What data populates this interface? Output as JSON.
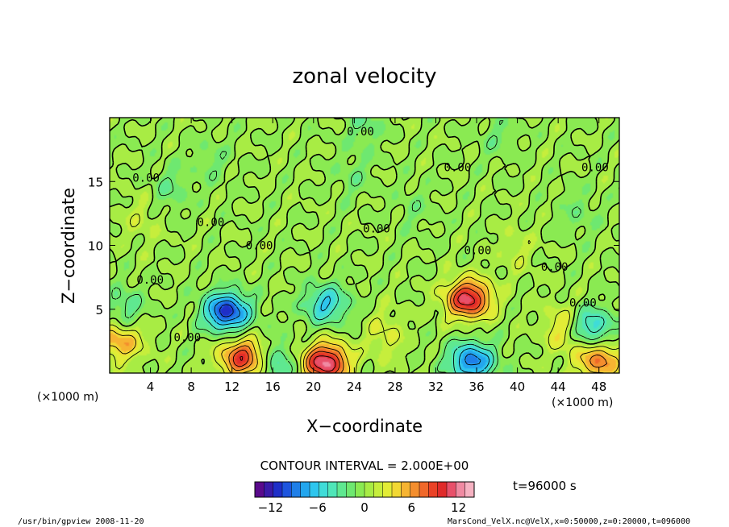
{
  "chart_data": {
    "type": "heatmap",
    "title": "zonal velocity",
    "xlabel": "X−coordinate",
    "ylabel": "Z−coordinate",
    "x_unit_left": "(×1000 m)",
    "x_unit_right": "(×1000 m)",
    "xlim": [
      0,
      50
    ],
    "ylim": [
      0,
      20
    ],
    "x_ticks": [
      4,
      8,
      12,
      16,
      20,
      24,
      28,
      32,
      36,
      40,
      44,
      48
    ],
    "y_ticks": [
      5,
      10,
      15
    ],
    "contour_interval_text": "CONTOUR INTERVAL = 2.000E+00",
    "time_text": "t=96000 s",
    "colorbar": {
      "range": [
        -14,
        14
      ],
      "ticks": [
        -12,
        -6,
        0,
        6,
        12
      ],
      "tick_labels": [
        "−12",
        "−6",
        "0",
        "6",
        "12"
      ],
      "colors": [
        "#5a0a8c",
        "#3a1aa8",
        "#1f2fc8",
        "#1e55de",
        "#1f7fe8",
        "#23a6ee",
        "#2ec6ee",
        "#3fdcd8",
        "#4fe6b8",
        "#5fe890",
        "#6ee870",
        "#8aea52",
        "#a8ec44",
        "#c6ee3c",
        "#e2ec36",
        "#f2d834",
        "#f6b432",
        "#f48e2e",
        "#f0682a",
        "#ea4226",
        "#e02a2a",
        "#e8506a",
        "#f08aa2",
        "#f6b2c2"
      ]
    },
    "contour_labels": [
      "0.00",
      "0.00",
      "0.00",
      "0.00",
      "0.00",
      "0.00",
      "0.00",
      "0.00",
      "0.00",
      "0.00",
      "0.00",
      "0.00"
    ],
    "features": [
      {
        "x": 11.5,
        "z": 4.8,
        "value": -11
      },
      {
        "x": 21.2,
        "z": 5.4,
        "value": -6
      },
      {
        "x": 21.2,
        "z": 0.8,
        "value": 12
      },
      {
        "x": 35.2,
        "z": 5.8,
        "value": 11
      },
      {
        "x": 35.5,
        "z": 0.9,
        "value": -9
      },
      {
        "x": 47.2,
        "z": 3.6,
        "value": -6
      },
      {
        "x": 13.0,
        "z": 1.2,
        "value": 9
      },
      {
        "x": 1.0,
        "z": 2.5,
        "value": 6
      },
      {
        "x": 48.0,
        "z": 1.0,
        "value": 7
      },
      {
        "x": 16.5,
        "z": 0.7,
        "value": -4
      },
      {
        "x": 1.5,
        "z": 5.0,
        "value": -3
      },
      {
        "x": 44.5,
        "z": 3.5,
        "value": 4
      },
      {
        "x": 6.0,
        "z": 14.5,
        "value": -2
      },
      {
        "x": 10.0,
        "z": 16.5,
        "value": -1.5
      },
      {
        "x": 24.0,
        "z": 15.5,
        "value": -1.5
      },
      {
        "x": 30.0,
        "z": 13.0,
        "value": -1.2
      },
      {
        "x": 25.0,
        "z": 19.5,
        "value": -2
      },
      {
        "x": 38.0,
        "z": 18.5,
        "value": -1.5
      },
      {
        "x": 46.0,
        "z": 12.5,
        "value": -1.5
      },
      {
        "x": 3.0,
        "z": 12.0,
        "value": 1.5
      },
      {
        "x": 40.0,
        "z": 9.5,
        "value": 1.5
      },
      {
        "x": 27.0,
        "z": 3.0,
        "value": 2.5
      }
    ]
  },
  "footer": {
    "left": "/usr/bin/gpview  2008-11-20",
    "right": "MarsCond_VelX.nc@VelX,x=0:50000,z=0:20000,t=096000"
  }
}
